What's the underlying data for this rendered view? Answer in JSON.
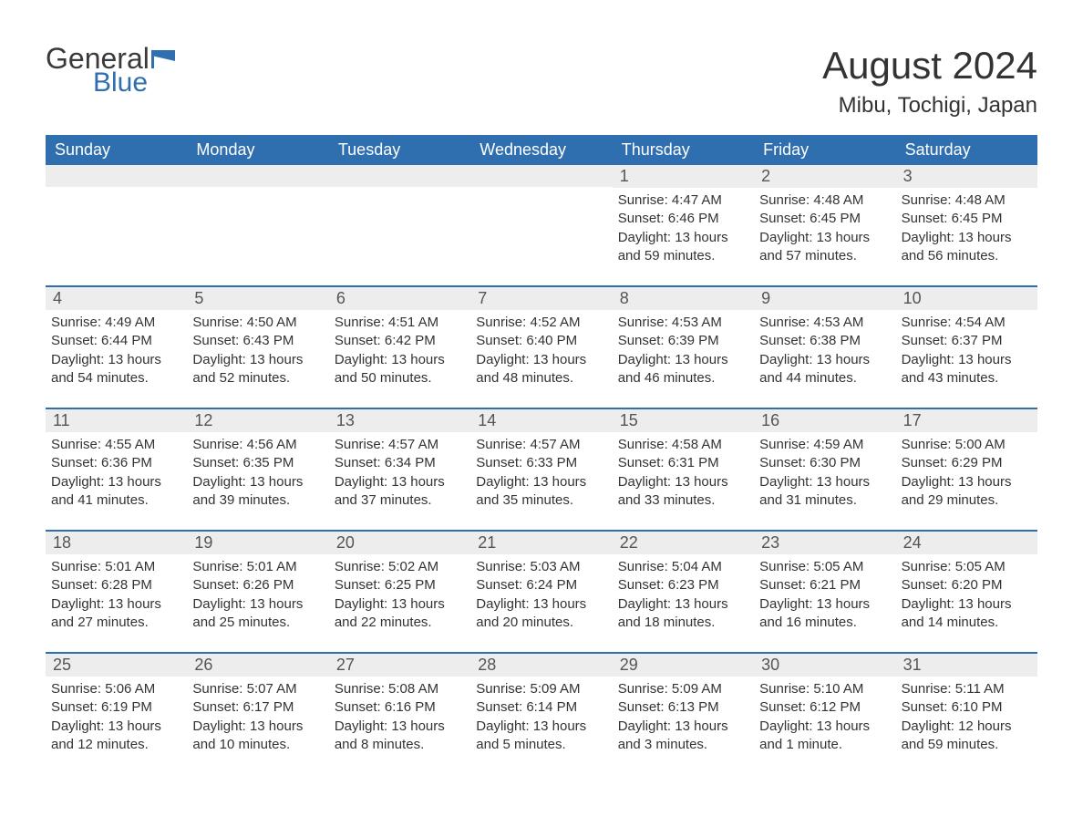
{
  "logo": {
    "text1": "General",
    "text2": "Blue",
    "flag_color": "#2f6fb0"
  },
  "header": {
    "month_title": "August 2024",
    "location": "Mibu, Tochigi, Japan"
  },
  "colors": {
    "header_bg": "#2f6fb0",
    "header_fg": "#ffffff",
    "daynum_bg": "#ededed",
    "border": "#2f6fb0",
    "text": "#333333"
  },
  "days_of_week": [
    "Sunday",
    "Monday",
    "Tuesday",
    "Wednesday",
    "Thursday",
    "Friday",
    "Saturday"
  ],
  "weeks": [
    [
      null,
      null,
      null,
      null,
      {
        "n": "1",
        "sunrise": "Sunrise: 4:47 AM",
        "sunset": "Sunset: 6:46 PM",
        "daylight": "Daylight: 13 hours and 59 minutes."
      },
      {
        "n": "2",
        "sunrise": "Sunrise: 4:48 AM",
        "sunset": "Sunset: 6:45 PM",
        "daylight": "Daylight: 13 hours and 57 minutes."
      },
      {
        "n": "3",
        "sunrise": "Sunrise: 4:48 AM",
        "sunset": "Sunset: 6:45 PM",
        "daylight": "Daylight: 13 hours and 56 minutes."
      }
    ],
    [
      {
        "n": "4",
        "sunrise": "Sunrise: 4:49 AM",
        "sunset": "Sunset: 6:44 PM",
        "daylight": "Daylight: 13 hours and 54 minutes."
      },
      {
        "n": "5",
        "sunrise": "Sunrise: 4:50 AM",
        "sunset": "Sunset: 6:43 PM",
        "daylight": "Daylight: 13 hours and 52 minutes."
      },
      {
        "n": "6",
        "sunrise": "Sunrise: 4:51 AM",
        "sunset": "Sunset: 6:42 PM",
        "daylight": "Daylight: 13 hours and 50 minutes."
      },
      {
        "n": "7",
        "sunrise": "Sunrise: 4:52 AM",
        "sunset": "Sunset: 6:40 PM",
        "daylight": "Daylight: 13 hours and 48 minutes."
      },
      {
        "n": "8",
        "sunrise": "Sunrise: 4:53 AM",
        "sunset": "Sunset: 6:39 PM",
        "daylight": "Daylight: 13 hours and 46 minutes."
      },
      {
        "n": "9",
        "sunrise": "Sunrise: 4:53 AM",
        "sunset": "Sunset: 6:38 PM",
        "daylight": "Daylight: 13 hours and 44 minutes."
      },
      {
        "n": "10",
        "sunrise": "Sunrise: 4:54 AM",
        "sunset": "Sunset: 6:37 PM",
        "daylight": "Daylight: 13 hours and 43 minutes."
      }
    ],
    [
      {
        "n": "11",
        "sunrise": "Sunrise: 4:55 AM",
        "sunset": "Sunset: 6:36 PM",
        "daylight": "Daylight: 13 hours and 41 minutes."
      },
      {
        "n": "12",
        "sunrise": "Sunrise: 4:56 AM",
        "sunset": "Sunset: 6:35 PM",
        "daylight": "Daylight: 13 hours and 39 minutes."
      },
      {
        "n": "13",
        "sunrise": "Sunrise: 4:57 AM",
        "sunset": "Sunset: 6:34 PM",
        "daylight": "Daylight: 13 hours and 37 minutes."
      },
      {
        "n": "14",
        "sunrise": "Sunrise: 4:57 AM",
        "sunset": "Sunset: 6:33 PM",
        "daylight": "Daylight: 13 hours and 35 minutes."
      },
      {
        "n": "15",
        "sunrise": "Sunrise: 4:58 AM",
        "sunset": "Sunset: 6:31 PM",
        "daylight": "Daylight: 13 hours and 33 minutes."
      },
      {
        "n": "16",
        "sunrise": "Sunrise: 4:59 AM",
        "sunset": "Sunset: 6:30 PM",
        "daylight": "Daylight: 13 hours and 31 minutes."
      },
      {
        "n": "17",
        "sunrise": "Sunrise: 5:00 AM",
        "sunset": "Sunset: 6:29 PM",
        "daylight": "Daylight: 13 hours and 29 minutes."
      }
    ],
    [
      {
        "n": "18",
        "sunrise": "Sunrise: 5:01 AM",
        "sunset": "Sunset: 6:28 PM",
        "daylight": "Daylight: 13 hours and 27 minutes."
      },
      {
        "n": "19",
        "sunrise": "Sunrise: 5:01 AM",
        "sunset": "Sunset: 6:26 PM",
        "daylight": "Daylight: 13 hours and 25 minutes."
      },
      {
        "n": "20",
        "sunrise": "Sunrise: 5:02 AM",
        "sunset": "Sunset: 6:25 PM",
        "daylight": "Daylight: 13 hours and 22 minutes."
      },
      {
        "n": "21",
        "sunrise": "Sunrise: 5:03 AM",
        "sunset": "Sunset: 6:24 PM",
        "daylight": "Daylight: 13 hours and 20 minutes."
      },
      {
        "n": "22",
        "sunrise": "Sunrise: 5:04 AM",
        "sunset": "Sunset: 6:23 PM",
        "daylight": "Daylight: 13 hours and 18 minutes."
      },
      {
        "n": "23",
        "sunrise": "Sunrise: 5:05 AM",
        "sunset": "Sunset: 6:21 PM",
        "daylight": "Daylight: 13 hours and 16 minutes."
      },
      {
        "n": "24",
        "sunrise": "Sunrise: 5:05 AM",
        "sunset": "Sunset: 6:20 PM",
        "daylight": "Daylight: 13 hours and 14 minutes."
      }
    ],
    [
      {
        "n": "25",
        "sunrise": "Sunrise: 5:06 AM",
        "sunset": "Sunset: 6:19 PM",
        "daylight": "Daylight: 13 hours and 12 minutes."
      },
      {
        "n": "26",
        "sunrise": "Sunrise: 5:07 AM",
        "sunset": "Sunset: 6:17 PM",
        "daylight": "Daylight: 13 hours and 10 minutes."
      },
      {
        "n": "27",
        "sunrise": "Sunrise: 5:08 AM",
        "sunset": "Sunset: 6:16 PM",
        "daylight": "Daylight: 13 hours and 8 minutes."
      },
      {
        "n": "28",
        "sunrise": "Sunrise: 5:09 AM",
        "sunset": "Sunset: 6:14 PM",
        "daylight": "Daylight: 13 hours and 5 minutes."
      },
      {
        "n": "29",
        "sunrise": "Sunrise: 5:09 AM",
        "sunset": "Sunset: 6:13 PM",
        "daylight": "Daylight: 13 hours and 3 minutes."
      },
      {
        "n": "30",
        "sunrise": "Sunrise: 5:10 AM",
        "sunset": "Sunset: 6:12 PM",
        "daylight": "Daylight: 13 hours and 1 minute."
      },
      {
        "n": "31",
        "sunrise": "Sunrise: 5:11 AM",
        "sunset": "Sunset: 6:10 PM",
        "daylight": "Daylight: 12 hours and 59 minutes."
      }
    ]
  ]
}
